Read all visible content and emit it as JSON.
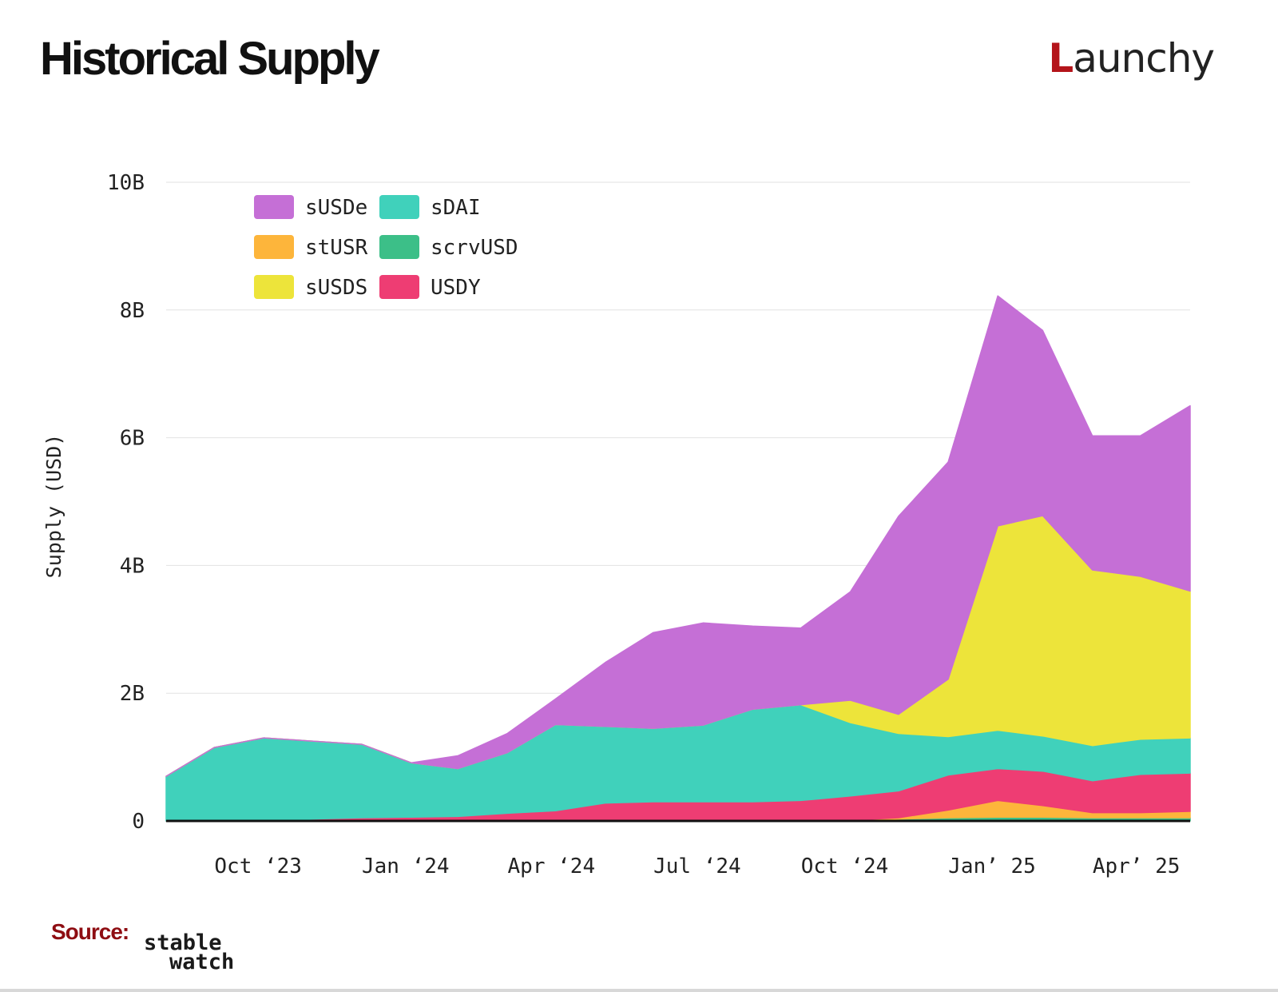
{
  "header": {
    "title": "Historical Supply",
    "brand_first": "L",
    "brand_rest": "aunchy"
  },
  "footer": {
    "source_label": "Source:",
    "source_line1": "stable",
    "source_line2": "watch"
  },
  "chart_data": {
    "type": "area",
    "stacked": true,
    "title": "Historical Supply",
    "ylabel": "Supply (USD)",
    "xlabel": "",
    "ylim": [
      0,
      10000000000
    ],
    "yticks": [
      0,
      2000000000,
      4000000000,
      6000000000,
      8000000000,
      10000000000
    ],
    "ytick_labels": [
      "0",
      "2B",
      "4B",
      "6B",
      "8B",
      "10B"
    ],
    "xrange": [
      "2023-09-01",
      "2025-06-01"
    ],
    "xticks": [
      "2023-10-01",
      "2024-01-01",
      "2024-04-01",
      "2024-07-01",
      "2024-10-01",
      "2025-01-01",
      "2025-04-01"
    ],
    "xtick_labels": [
      "Oct ‘23",
      "Jan ‘24",
      "Apr ‘24",
      "Jul ‘24",
      "Oct ‘24",
      "Jan’ 25",
      "Apr’ 25"
    ],
    "grid": true,
    "legend_position": "top-left",
    "legend": [
      "sUSDe",
      "sDAI",
      "stUSR",
      "scrvUSD",
      "sUSDS",
      "USDY"
    ],
    "x": [
      "2023-09-01",
      "2023-10-01",
      "2023-11-01",
      "2023-12-01",
      "2024-01-01",
      "2024-02-01",
      "2024-03-01",
      "2024-04-01",
      "2024-05-01",
      "2024-06-01",
      "2024-07-01",
      "2024-08-01",
      "2024-09-01",
      "2024-10-01",
      "2024-11-01",
      "2024-12-01",
      "2025-01-01",
      "2025-02-01",
      "2025-03-01",
      "2025-04-01",
      "2025-05-01",
      "2025-06-01"
    ],
    "series": [
      {
        "name": "scrvUSD",
        "color": "#3cbf88",
        "values": [
          0,
          0,
          0,
          0,
          0,
          0,
          0,
          0,
          0,
          0,
          0,
          0,
          0,
          0,
          0.01,
          0.03,
          0.05,
          0.06,
          0.06,
          0.05,
          0.05,
          0.05
        ]
      },
      {
        "name": "stUSR",
        "color": "#fdb53b",
        "values": [
          0,
          0,
          0,
          0,
          0,
          0,
          0,
          0,
          0,
          0,
          0,
          0,
          0,
          0,
          0,
          0.02,
          0.12,
          0.26,
          0.18,
          0.08,
          0.08,
          0.1
        ]
      },
      {
        "name": "USDY",
        "color": "#ee3d73",
        "values": [
          0,
          0,
          0,
          0.03,
          0.05,
          0.06,
          0.07,
          0.12,
          0.16,
          0.28,
          0.3,
          0.3,
          0.3,
          0.32,
          0.38,
          0.42,
          0.55,
          0.5,
          0.54,
          0.5,
          0.6,
          0.6
        ]
      },
      {
        "name": "sDAI",
        "color": "#40d1bb",
        "values": [
          0.7,
          1.15,
          1.3,
          1.22,
          1.15,
          0.85,
          0.75,
          0.95,
          1.35,
          1.2,
          1.15,
          1.2,
          1.45,
          1.5,
          1.15,
          0.9,
          0.6,
          0.6,
          0.55,
          0.55,
          0.55,
          0.55
        ]
      },
      {
        "name": "sUSDS",
        "color": "#ede43a",
        "values": [
          0,
          0,
          0,
          0,
          0,
          0,
          0,
          0,
          0,
          0,
          0,
          0,
          0,
          0,
          0.35,
          0.3,
          0.9,
          3.2,
          3.45,
          2.75,
          2.55,
          2.3
        ]
      },
      {
        "name": "sUSDe",
        "color": "#c56fd6",
        "values": [
          0,
          0,
          0,
          0,
          0,
          0,
          0.2,
          0.3,
          0.4,
          1.0,
          1.5,
          1.6,
          1.3,
          1.2,
          1.7,
          3.1,
          3.4,
          3.6,
          2.9,
          2.1,
          2.2,
          2.9
        ]
      }
    ],
    "value_unit_note": ""
  }
}
